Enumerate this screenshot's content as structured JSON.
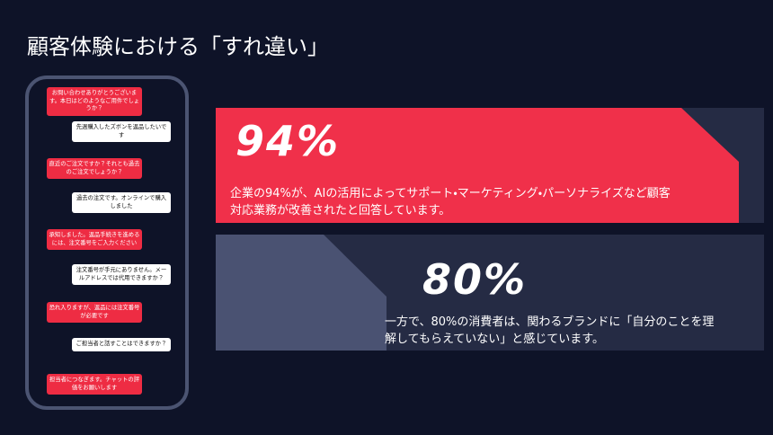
{
  "title": "顧客体験における「すれ違い」",
  "chat": {
    "messages": [
      {
        "side": "left",
        "text": "お問い合わせありがとうございます。本日はどのようなご用件でしょうか？"
      },
      {
        "side": "right",
        "text": "先週購入したズボンを返品したいです"
      },
      {
        "side": "left",
        "text": "直近のご注文ですか？それとも過去のご注文でしょうか？"
      },
      {
        "side": "right",
        "text": "過去の注文です。オンラインで購入しました"
      },
      {
        "side": "left",
        "text": "承知しました。返品手続きを進めるには、注文番号をご入力ください"
      },
      {
        "side": "right",
        "text": "注文番号が手元にありません。メールアドレスでは代用できますか？"
      },
      {
        "side": "left",
        "text": "恐れ入りますが、返品には注文番号が必要です"
      },
      {
        "side": "right",
        "text": "ご担当者と話すことはできますか？"
      },
      {
        "side": "left",
        "text": "担当者につなぎます。チャットの評価をお願いします"
      }
    ]
  },
  "stats": [
    {
      "figure": "94%",
      "text": "企業の94%が、AIの活用によってサポート・マーケティング・パーソナライズなど顧客対応業務が改善されたと回答しています。"
    },
    {
      "figure": "80%",
      "text": "一方で、80%の消費者は、関わるブランドに「自分のことを理解してもらえていない」と感じています。"
    }
  ]
}
